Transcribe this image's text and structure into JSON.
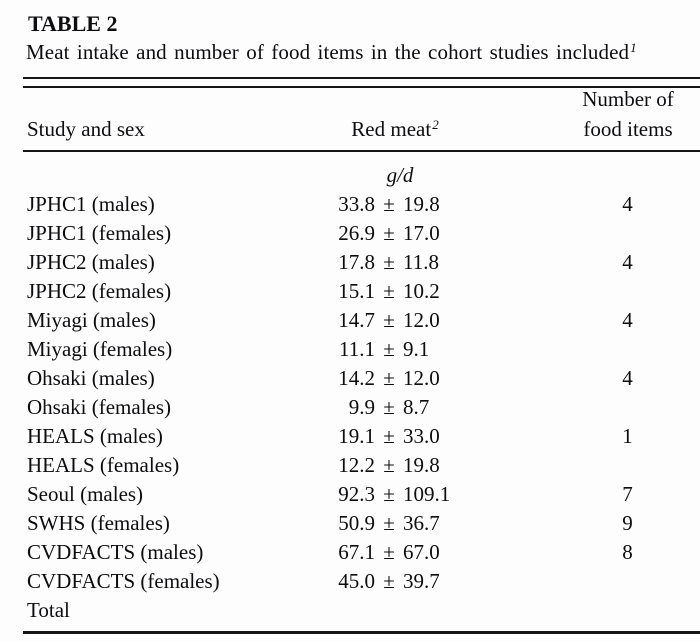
{
  "table": {
    "label": "TABLE 2",
    "caption": "Meat intake and number of food items in the cohort studies included",
    "caption_footnote": "1",
    "headers": {
      "study": "Study and sex",
      "red_meat": "Red meat",
      "red_meat_footnote": "2",
      "items_line1": "Number of",
      "items_line2": "food items"
    },
    "unit": "g/d",
    "rows": [
      {
        "study": "JPHC1 (males)",
        "mean": "33.8",
        "pm": "±",
        "sd": "19.8",
        "items": "4"
      },
      {
        "study": "JPHC1 (females)",
        "mean": "26.9",
        "pm": "±",
        "sd": "17.0",
        "items": ""
      },
      {
        "study": "JPHC2 (males)",
        "mean": "17.8",
        "pm": "±",
        "sd": "11.8",
        "items": "4"
      },
      {
        "study": "JPHC2 (females)",
        "mean": "15.1",
        "pm": "±",
        "sd": "10.2",
        "items": ""
      },
      {
        "study": "Miyagi (males)",
        "mean": "14.7",
        "pm": "±",
        "sd": "12.0",
        "items": "4"
      },
      {
        "study": "Miyagi (females)",
        "mean": "11.1",
        "pm": "±",
        "sd": "9.1",
        "items": ""
      },
      {
        "study": "Ohsaki (males)",
        "mean": "14.2",
        "pm": "±",
        "sd": "12.0",
        "items": "4"
      },
      {
        "study": "Ohsaki (females)",
        "mean": "9.9",
        "pm": "±",
        "sd": "8.7",
        "items": ""
      },
      {
        "study": "HEALS (males)",
        "mean": "19.1",
        "pm": "±",
        "sd": "33.0",
        "items": "1"
      },
      {
        "study": "HEALS (females)",
        "mean": "12.2",
        "pm": "±",
        "sd": "19.8",
        "items": ""
      },
      {
        "study": "Seoul (males)",
        "mean": "92.3",
        "pm": "±",
        "sd": "109.1",
        "items": "7"
      },
      {
        "study": "SWHS (females)",
        "mean": "50.9",
        "pm": "±",
        "sd": "36.7",
        "items": "9"
      },
      {
        "study": "CVDFACTS (males)",
        "mean": "67.1",
        "pm": "±",
        "sd": "67.0",
        "items": "8"
      },
      {
        "study": "CVDFACTS (females)",
        "mean": "45.0",
        "pm": "±",
        "sd": "39.7",
        "items": ""
      },
      {
        "study": "Total",
        "mean": "",
        "pm": "",
        "sd": "",
        "items": ""
      }
    ],
    "colors": {
      "background": "#fdfdfd",
      "text": "#0d0d10",
      "rule": "#161616"
    }
  }
}
